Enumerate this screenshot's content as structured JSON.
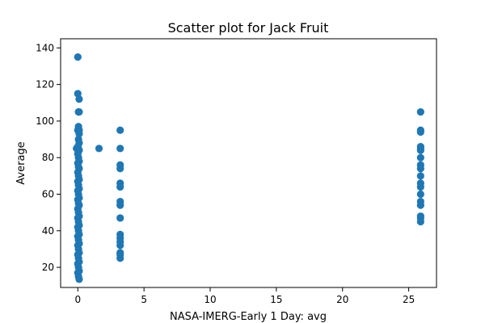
{
  "chart_data": {
    "type": "scatter",
    "title": "Scatter plot for Jack Fruit",
    "xlabel": "NASA-IMERG-Early 1 Day: avg",
    "ylabel": "Average",
    "xlim": [
      -1.3,
      27.1
    ],
    "ylim": [
      9,
      145
    ],
    "xticks": [
      0,
      5,
      10,
      15,
      20,
      25
    ],
    "yticks": [
      20,
      40,
      60,
      80,
      100,
      120,
      140
    ],
    "grid": false,
    "marker_color": "#1f77b4",
    "series": [
      {
        "points": [
          [
            0,
            135
          ],
          [
            0,
            115
          ],
          [
            0.1,
            112
          ],
          [
            0.05,
            105
          ],
          [
            0.1,
            105
          ],
          [
            0.05,
            97
          ],
          [
            0.1,
            95
          ],
          [
            0,
            95
          ],
          [
            0.1,
            93
          ],
          [
            0.05,
            90
          ],
          [
            0.1,
            88
          ],
          [
            0,
            86
          ],
          [
            0.05,
            85
          ],
          [
            -0.1,
            85
          ],
          [
            0.1,
            84
          ],
          [
            0,
            82
          ],
          [
            0.05,
            80
          ],
          [
            0.1,
            78
          ],
          [
            0,
            77
          ],
          [
            0.05,
            75
          ],
          [
            0.1,
            74
          ],
          [
            0,
            72
          ],
          [
            0.05,
            70
          ],
          [
            0.1,
            68
          ],
          [
            0,
            67
          ],
          [
            0.05,
            65
          ],
          [
            0.1,
            63
          ],
          [
            0,
            62
          ],
          [
            0.05,
            60
          ],
          [
            0.1,
            58
          ],
          [
            0,
            57
          ],
          [
            0.05,
            55
          ],
          [
            0.1,
            54
          ],
          [
            0,
            52
          ],
          [
            0.05,
            50
          ],
          [
            0.1,
            48
          ],
          [
            0,
            47
          ],
          [
            0.05,
            45
          ],
          [
            0.1,
            43
          ],
          [
            0,
            42
          ],
          [
            0.05,
            40
          ],
          [
            0.1,
            38
          ],
          [
            0,
            37
          ],
          [
            0.05,
            35
          ],
          [
            0.1,
            33
          ],
          [
            0,
            32
          ],
          [
            0.05,
            30
          ],
          [
            0.1,
            28
          ],
          [
            0,
            27
          ],
          [
            0.05,
            25
          ],
          [
            0.1,
            23
          ],
          [
            0,
            22
          ],
          [
            0.05,
            20
          ],
          [
            0.1,
            18
          ],
          [
            0,
            17
          ],
          [
            0.05,
            15
          ],
          [
            0.1,
            13.5
          ],
          [
            1.6,
            85
          ],
          [
            3.2,
            95
          ],
          [
            3.2,
            85
          ],
          [
            3.2,
            76
          ],
          [
            3.2,
            74
          ],
          [
            3.2,
            66
          ],
          [
            3.2,
            64
          ],
          [
            3.2,
            56
          ],
          [
            3.2,
            54
          ],
          [
            3.2,
            47
          ],
          [
            3.2,
            38
          ],
          [
            3.2,
            36
          ],
          [
            3.2,
            34
          ],
          [
            3.2,
            32
          ],
          [
            3.2,
            28
          ],
          [
            3.2,
            27
          ],
          [
            3.2,
            25
          ],
          [
            25.9,
            105
          ],
          [
            25.9,
            95
          ],
          [
            25.9,
            94
          ],
          [
            25.9,
            86
          ],
          [
            25.9,
            85
          ],
          [
            25.9,
            84
          ],
          [
            25.9,
            80
          ],
          [
            25.9,
            76
          ],
          [
            25.9,
            74
          ],
          [
            25.9,
            70
          ],
          [
            25.9,
            66
          ],
          [
            25.9,
            64
          ],
          [
            25.9,
            60
          ],
          [
            25.9,
            56
          ],
          [
            25.9,
            54
          ],
          [
            25.9,
            48
          ],
          [
            25.9,
            47
          ],
          [
            25.9,
            45
          ]
        ]
      }
    ]
  }
}
